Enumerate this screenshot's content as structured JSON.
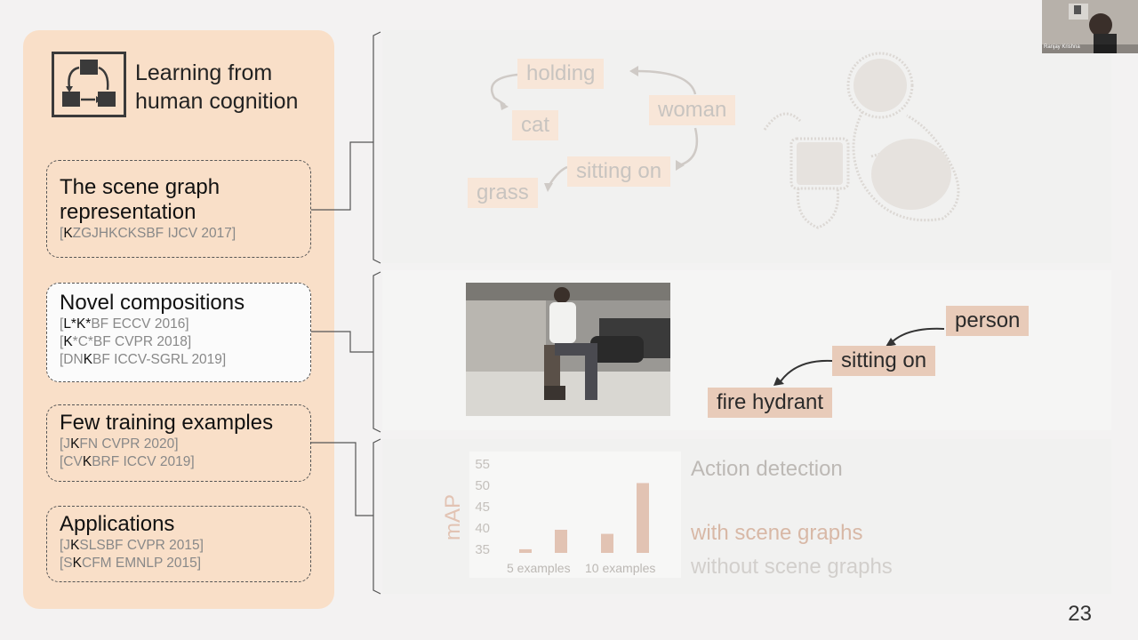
{
  "panel": {
    "title": "Learning from\nhuman cognition",
    "cards": [
      {
        "title": "The scene graph\nrepresentation",
        "refs": [
          {
            "bold": "K",
            "rest": "ZGJHKCKSBF   IJCV 2017]",
            "pre": "["
          }
        ]
      },
      {
        "title": "Novel compositions",
        "refs": [
          {
            "pre": "[",
            "bold": "L*K*",
            "rest": "BF   ECCV 2016]"
          },
          {
            "pre": "[",
            "bold": "K",
            "rest": "*C*BF   CVPR 2018]"
          },
          {
            "pre": "[DN",
            "bold": "K",
            "rest": "BF   ICCV-SGRL 2019]"
          }
        ]
      },
      {
        "title": "Few training examples",
        "refs": [
          {
            "pre": "[J",
            "bold": "K",
            "rest": "FN   CVPR 2020]"
          },
          {
            "pre": "[CV",
            "bold": "K",
            "rest": "BRF   ICCV 2019]"
          }
        ]
      },
      {
        "title": "Applications",
        "refs": [
          {
            "pre": "[J",
            "bold": "K",
            "rest": "SLSBF   CVPR 2015]"
          },
          {
            "pre": "[S",
            "bold": "K",
            "rest": "CFM   EMNLP 2015]"
          }
        ]
      }
    ]
  },
  "scene_graph_1": {
    "nodes": {
      "holding": "holding",
      "cat": "cat",
      "woman": "woman",
      "sitting_on": "sitting on",
      "grass": "grass"
    }
  },
  "scene_graph_2": {
    "nodes": {
      "person": "person",
      "sitting_on": "sitting on",
      "fire_hydrant": "fire hydrant"
    }
  },
  "chart_data": {
    "type": "bar",
    "categories": [
      "5 examples",
      "10 examples"
    ],
    "ylabel": "mAP",
    "yticks": [
      35,
      40,
      45,
      50,
      55
    ],
    "ylim": [
      35,
      55
    ],
    "series": [
      {
        "name": "with scene graphs",
        "values": [
          35.8,
          39.2
        ]
      },
      {
        "name": "without scene graphs",
        "values": [
          40.1,
          50.4
        ]
      }
    ],
    "title": "Action detection",
    "legend": {
      "with": "with scene graphs",
      "without": "without scene graphs"
    }
  },
  "webcam": {
    "name": "Ranjay Krishna"
  },
  "page_number": "23",
  "colors": {
    "panel": "#f9dfc8",
    "node_strong": "#e8cbb9",
    "node_faded": "#f8e6d8",
    "bar": "#e2c3b3"
  }
}
